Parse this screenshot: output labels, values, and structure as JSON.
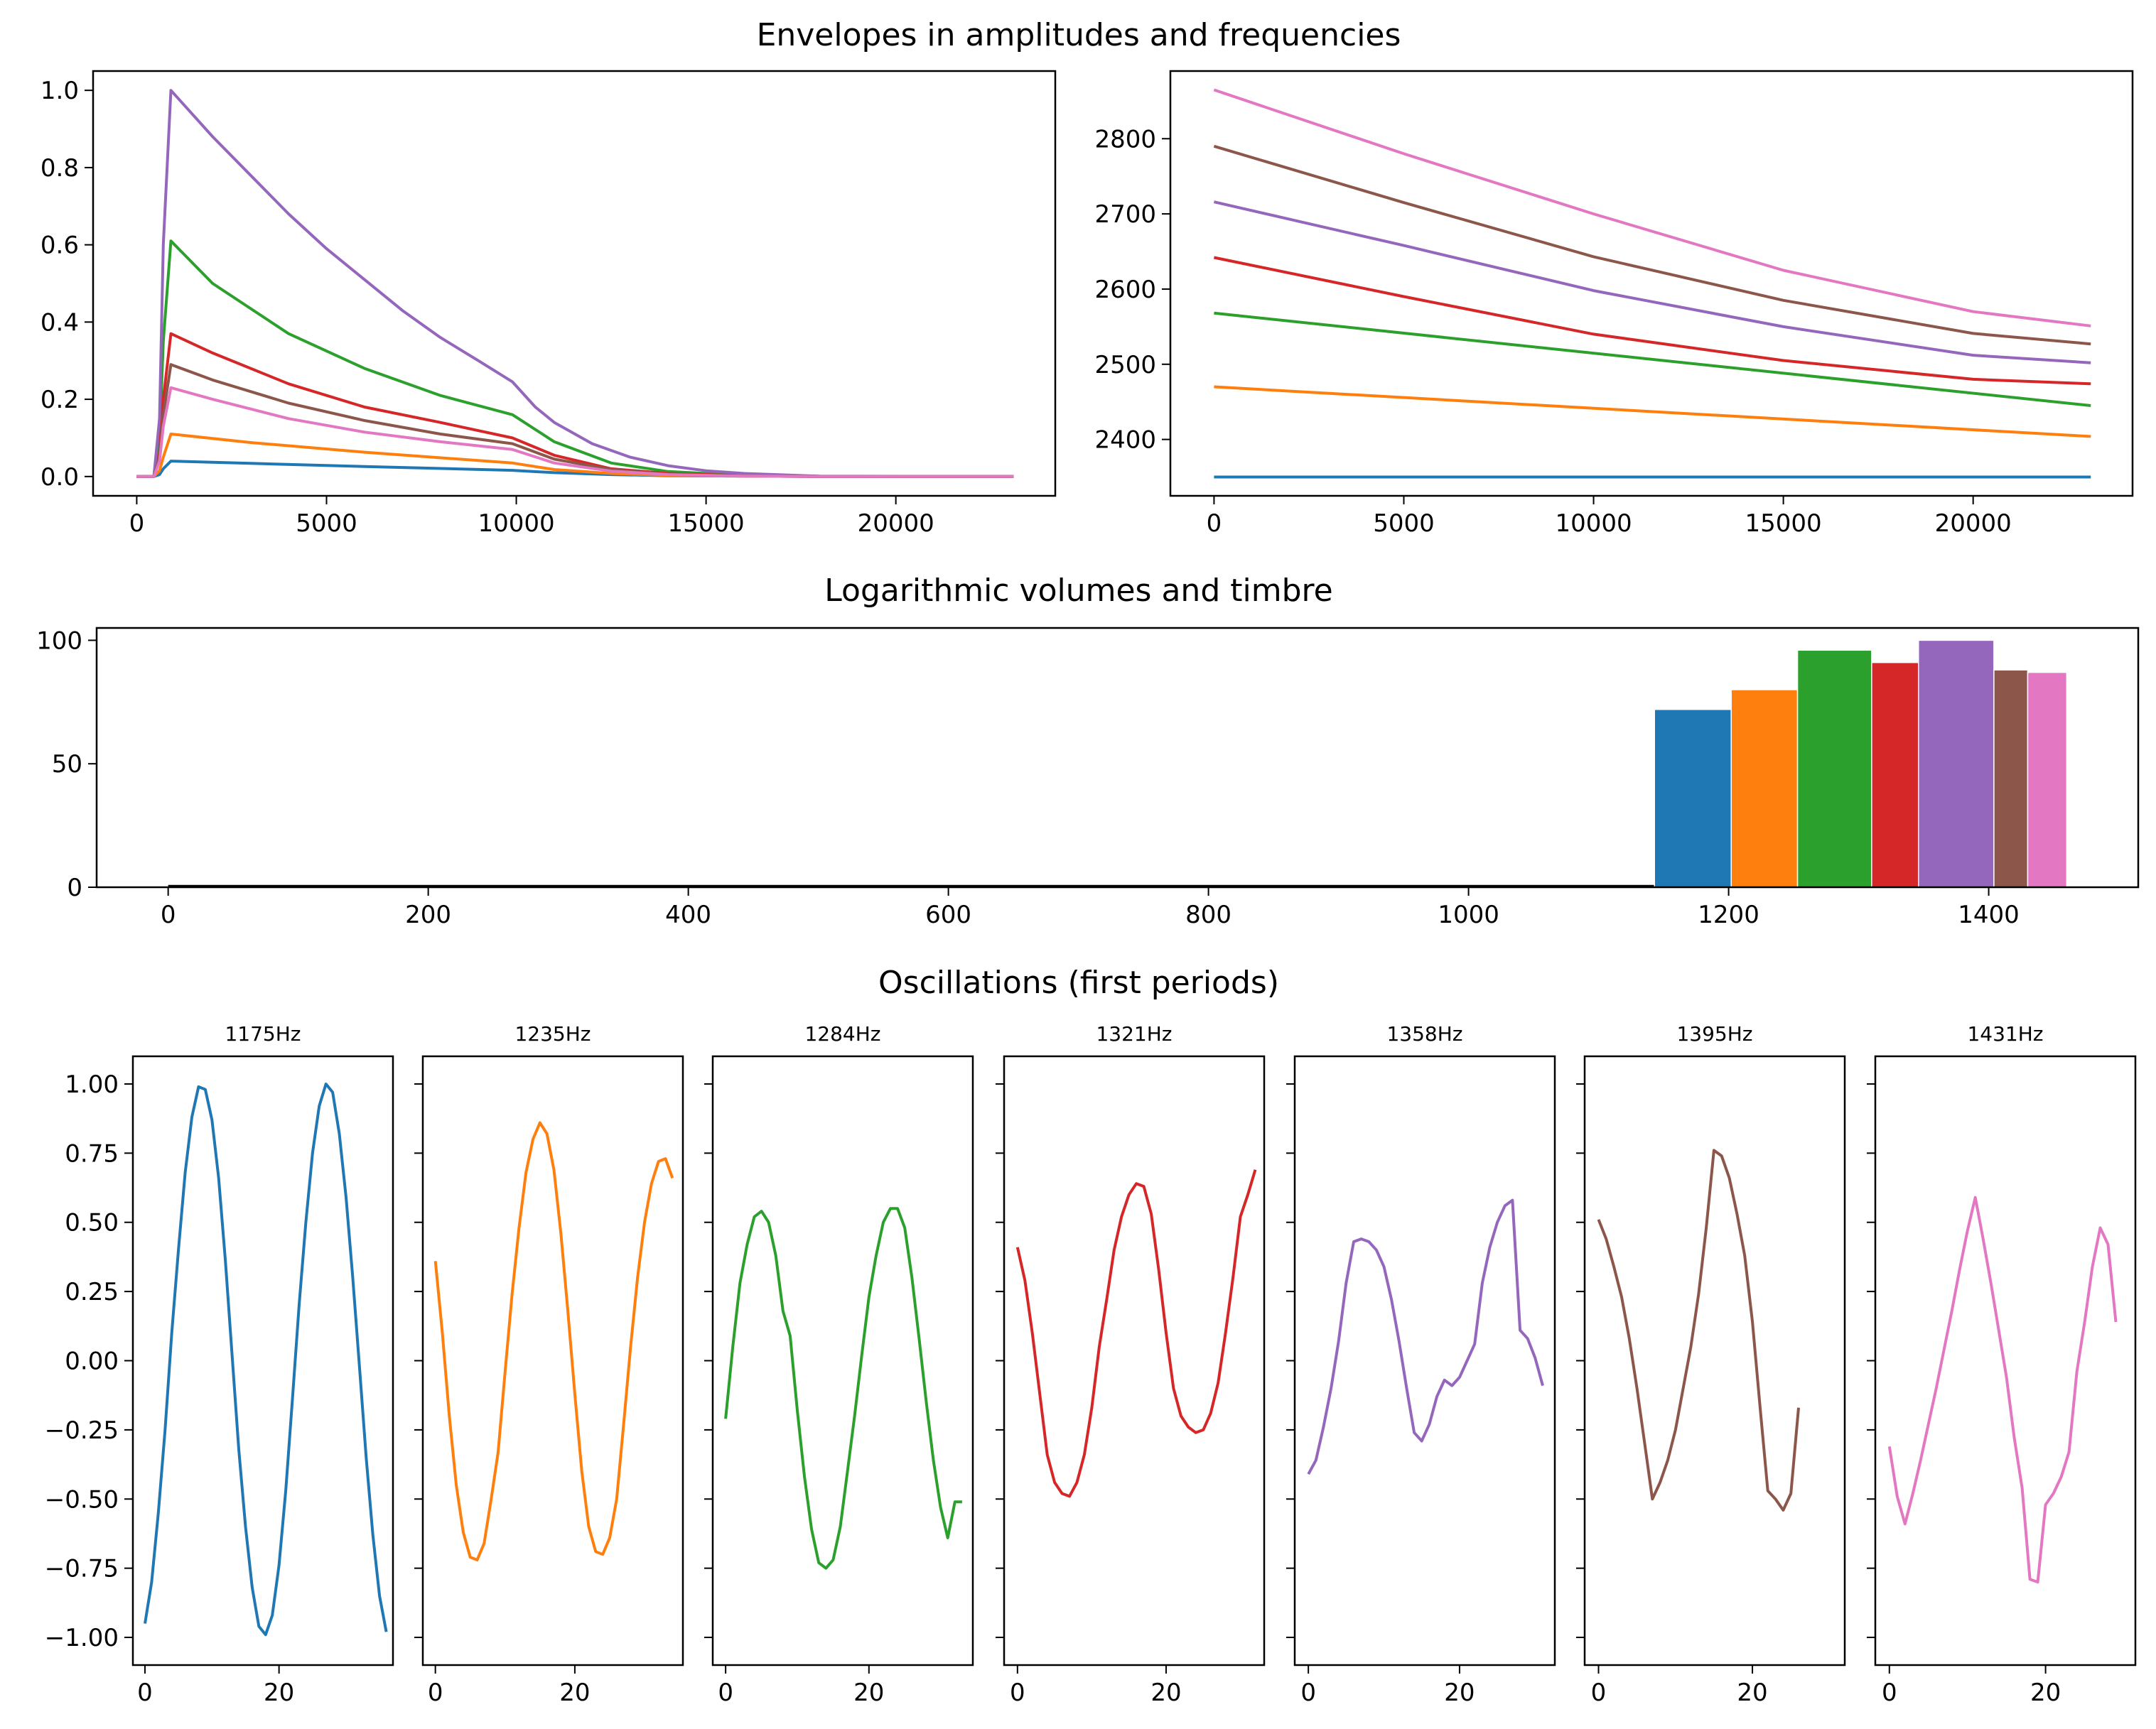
{
  "figure": {
    "titles": {
      "envelopes": "Envelopes in amplitudes and frequencies",
      "volumes": "Logarithmic volumes and timbre",
      "oscillations": "Oscillations (first periods)"
    }
  },
  "colors": [
    "#1f77b4",
    "#ff7f0e",
    "#2ca02c",
    "#d62728",
    "#9467bd",
    "#8c564b",
    "#e377c2"
  ],
  "chart_data": [
    {
      "id": "amplitude-envelopes",
      "type": "line",
      "title": "",
      "xlim": [
        -1150,
        24200
      ],
      "ylim": [
        -0.05,
        1.05
      ],
      "xticks": [
        0,
        5000,
        10000,
        15000,
        20000
      ],
      "yticks": [
        0.0,
        0.2,
        0.4,
        0.6,
        0.8,
        1.0
      ],
      "xticklabels": [
        "0",
        "5000",
        "10000",
        "15000",
        "20000"
      ],
      "yticklabels": [
        "0.0",
        "0.2",
        "0.4",
        "0.6",
        "0.8",
        "1.0"
      ],
      "series": [
        {
          "x": [
            0,
            450,
            600,
            700,
            900,
            3000,
            6000,
            9900,
            11000,
            12500,
            14000,
            16000,
            18000,
            23100
          ],
          "y": [
            0,
            0,
            0.005,
            0.02,
            0.04,
            0.034,
            0.026,
            0.016,
            0.01,
            0.005,
            0.002,
            0.001,
            0,
            0
          ]
        },
        {
          "x": [
            0,
            450,
            600,
            700,
            900,
            3000,
            6000,
            9900,
            11000,
            12500,
            14000,
            16000,
            18000,
            23100
          ],
          "y": [
            0,
            0,
            0.015,
            0.05,
            0.11,
            0.088,
            0.063,
            0.035,
            0.018,
            0.008,
            0.003,
            0.001,
            0,
            0
          ]
        },
        {
          "x": [
            0,
            450,
            600,
            700,
            900,
            2000,
            4000,
            6000,
            8000,
            9900,
            11000,
            12500,
            14000,
            16000,
            18000,
            23100
          ],
          "y": [
            0,
            0,
            0.1,
            0.35,
            0.61,
            0.5,
            0.37,
            0.28,
            0.21,
            0.16,
            0.09,
            0.035,
            0.013,
            0.003,
            0,
            0
          ]
        },
        {
          "x": [
            0,
            450,
            600,
            700,
            900,
            2000,
            4000,
            6000,
            8000,
            9900,
            11000,
            12500,
            14000,
            16000,
            18000,
            23100
          ],
          "y": [
            0,
            0,
            0.06,
            0.2,
            0.37,
            0.32,
            0.24,
            0.18,
            0.14,
            0.1,
            0.055,
            0.02,
            0.008,
            0.002,
            0,
            0
          ]
        },
        {
          "x": [
            0,
            450,
            600,
            700,
            900,
            2000,
            3000,
            4000,
            5000,
            6000,
            7000,
            8000,
            9000,
            9900,
            10500,
            11000,
            12000,
            13000,
            14000,
            15000,
            16000,
            18000,
            23100
          ],
          "y": [
            0,
            0,
            0.15,
            0.6,
            1.0,
            0.88,
            0.78,
            0.68,
            0.59,
            0.51,
            0.43,
            0.36,
            0.3,
            0.245,
            0.18,
            0.14,
            0.085,
            0.05,
            0.028,
            0.015,
            0.008,
            0.001,
            0
          ]
        },
        {
          "x": [
            0,
            450,
            600,
            700,
            900,
            2000,
            4000,
            6000,
            8000,
            9900,
            11000,
            12500,
            14000,
            16000,
            18000,
            23100
          ],
          "y": [
            0,
            0,
            0.05,
            0.16,
            0.29,
            0.25,
            0.19,
            0.145,
            0.11,
            0.085,
            0.045,
            0.018,
            0.006,
            0.001,
            0,
            0
          ]
        },
        {
          "x": [
            0,
            450,
            600,
            700,
            900,
            2000,
            4000,
            6000,
            8000,
            9900,
            11000,
            12500,
            14000,
            16000,
            18000,
            23100
          ],
          "y": [
            0,
            0,
            0.04,
            0.13,
            0.23,
            0.2,
            0.15,
            0.115,
            0.09,
            0.07,
            0.035,
            0.014,
            0.005,
            0.001,
            0,
            0
          ]
        }
      ]
    },
    {
      "id": "frequency-envelopes",
      "type": "line",
      "title": "",
      "xlim": [
        -1150,
        24200
      ],
      "ylim": [
        2325,
        2890
      ],
      "xticks": [
        0,
        5000,
        10000,
        15000,
        20000
      ],
      "yticks": [
        2400,
        2500,
        2600,
        2700,
        2800
      ],
      "xticklabels": [
        "0",
        "5000",
        "10000",
        "15000",
        "20000"
      ],
      "yticklabels": [
        "2400",
        "2500",
        "2600",
        "2700",
        "2800"
      ],
      "series": [
        {
          "x": [
            0,
            23100
          ],
          "y": [
            2350,
            2350
          ]
        },
        {
          "x": [
            0,
            23100
          ],
          "y": [
            2470,
            2404
          ]
        },
        {
          "x": [
            0,
            23100
          ],
          "y": [
            2568,
            2445
          ]
        },
        {
          "x": [
            0,
            5000,
            10000,
            15000,
            20000,
            23100
          ],
          "y": [
            2642,
            2590,
            2540,
            2505,
            2480,
            2474
          ]
        },
        {
          "x": [
            0,
            5000,
            10000,
            15000,
            20000,
            23100
          ],
          "y": [
            2716,
            2658,
            2598,
            2550,
            2512,
            2502
          ]
        },
        {
          "x": [
            0,
            5000,
            10000,
            15000,
            20000,
            23100
          ],
          "y": [
            2790,
            2715,
            2643,
            2585,
            2541,
            2527
          ]
        },
        {
          "x": [
            0,
            5000,
            10000,
            15000,
            20000,
            23100
          ],
          "y": [
            2865,
            2780,
            2700,
            2625,
            2570,
            2551
          ]
        }
      ]
    },
    {
      "id": "log-volumes",
      "type": "bar",
      "title": "",
      "xlim": [
        -55,
        1515
      ],
      "ylim": [
        0,
        105
      ],
      "xticks": [
        0,
        200,
        400,
        600,
        800,
        1000,
        1200,
        1400
      ],
      "yticks": [
        0,
        50,
        100
      ],
      "xticklabels": [
        "0",
        "200",
        "400",
        "600",
        "800",
        "1000",
        "1200",
        "1400"
      ],
      "yticklabels": [
        "0",
        "50",
        "100"
      ],
      "baseline_x": [
        0,
        1430
      ],
      "baseline_y": 0.5,
      "bars": [
        {
          "x0": 1143,
          "x1": 1202,
          "value": 72
        },
        {
          "x0": 1202,
          "x1": 1253,
          "value": 80
        },
        {
          "x0": 1253,
          "x1": 1310,
          "value": 96
        },
        {
          "x0": 1310,
          "x1": 1346,
          "value": 91
        },
        {
          "x0": 1346,
          "x1": 1404,
          "value": 100
        },
        {
          "x0": 1404,
          "x1": 1430,
          "value": 88
        },
        {
          "x0": 1430,
          "x1": 1460,
          "value": 87
        }
      ]
    },
    {
      "id": "oscillations",
      "type": "line",
      "title": "",
      "ylim": [
        -1.1,
        1.1
      ],
      "yticks": [
        -1.0,
        -0.75,
        -0.5,
        -0.25,
        0.0,
        0.25,
        0.5,
        0.75,
        1.0
      ],
      "yticklabels": [
        "−1.00",
        "−0.75",
        "−0.50",
        "−0.25",
        "0.00",
        "0.25",
        "0.50",
        "0.75",
        "1.00"
      ],
      "xticks": [
        0,
        20
      ],
      "xticklabels": [
        "0",
        "20"
      ],
      "panels": [
        {
          "label": "1175Hz",
          "xlim": [
            -1.8,
            37
          ],
          "y": [
            -0.95,
            -0.8,
            -0.55,
            -0.25,
            0.1,
            0.4,
            0.68,
            0.88,
            0.99,
            0.98,
            0.87,
            0.66,
            0.36,
            0.02,
            -0.32,
            -0.6,
            -0.82,
            -0.96,
            -0.99,
            -0.92,
            -0.74,
            -0.47,
            -0.14,
            0.2,
            0.5,
            0.75,
            0.92,
            1.0,
            0.97,
            0.82,
            0.59,
            0.3,
            -0.02,
            -0.35,
            -0.63,
            -0.85,
            -0.98
          ]
        },
        {
          "label": "1235Hz",
          "xlim": [
            -1.8,
            35.5
          ],
          "y": [
            0.36,
            0.1,
            -0.2,
            -0.45,
            -0.62,
            -0.71,
            -0.72,
            -0.66,
            -0.5,
            -0.33,
            -0.04,
            0.24,
            0.48,
            0.68,
            0.8,
            0.86,
            0.82,
            0.69,
            0.46,
            0.18,
            -0.12,
            -0.4,
            -0.6,
            -0.69,
            -0.7,
            -0.64,
            -0.5,
            -0.23,
            0.05,
            0.3,
            0.5,
            0.64,
            0.72,
            0.73,
            0.66
          ]
        },
        {
          "label": "1284Hz",
          "xlim": [
            -1.8,
            34.5
          ],
          "y": [
            -0.21,
            0.05,
            0.28,
            0.42,
            0.52,
            0.54,
            0.5,
            0.38,
            0.18,
            0.09,
            -0.18,
            -0.42,
            -0.61,
            -0.73,
            -0.75,
            -0.72,
            -0.6,
            -0.4,
            -0.2,
            0.02,
            0.23,
            0.38,
            0.5,
            0.55,
            0.55,
            0.48,
            0.3,
            0.08,
            -0.15,
            -0.36,
            -0.53,
            -0.64,
            -0.51,
            -0.51
          ]
        },
        {
          "label": "1321Hz",
          "xlim": [
            -1.8,
            33.2
          ],
          "y": [
            0.41,
            0.29,
            0.1,
            -0.12,
            -0.34,
            -0.44,
            -0.48,
            -0.49,
            -0.44,
            -0.34,
            -0.17,
            0.05,
            0.22,
            0.4,
            0.52,
            0.6,
            0.64,
            0.63,
            0.53,
            0.33,
            0.1,
            -0.1,
            -0.2,
            -0.24,
            -0.26,
            -0.25,
            -0.19,
            -0.08,
            0.1,
            0.3,
            0.52,
            0.6,
            0.69
          ]
        },
        {
          "label": "1358Hz",
          "xlim": [
            -1.8,
            32.6
          ],
          "y": [
            -0.41,
            -0.36,
            -0.24,
            -0.1,
            0.07,
            0.28,
            0.43,
            0.44,
            0.43,
            0.4,
            0.34,
            0.22,
            0.07,
            -0.1,
            -0.26,
            -0.29,
            -0.23,
            -0.13,
            -0.07,
            -0.09,
            -0.06,
            0.0,
            0.06,
            0.28,
            0.41,
            0.5,
            0.56,
            0.58,
            0.11,
            0.08,
            0.01,
            -0.09
          ]
        },
        {
          "label": "1395Hz",
          "xlim": [
            -1.8,
            32
          ],
          "y": [
            0.51,
            0.44,
            0.34,
            0.23,
            0.08,
            -0.1,
            -0.3,
            -0.5,
            -0.44,
            -0.36,
            -0.25,
            -0.1,
            0.05,
            0.24,
            0.48,
            0.76,
            0.74,
            0.66,
            0.53,
            0.38,
            0.14,
            -0.17,
            -0.47,
            -0.5,
            -0.54,
            -0.48,
            -0.17
          ]
        },
        {
          "label": "1431Hz",
          "xlim": [
            -1.8,
            31.5
          ],
          "y": [
            -0.31,
            -0.49,
            -0.59,
            -0.48,
            -0.36,
            -0.23,
            -0.1,
            0.04,
            0.18,
            0.33,
            0.47,
            0.59,
            0.44,
            0.28,
            0.11,
            -0.06,
            -0.28,
            -0.46,
            -0.79,
            -0.8,
            -0.52,
            -0.48,
            -0.42,
            -0.33,
            -0.04,
            0.14,
            0.34,
            0.48,
            0.42,
            0.14
          ]
        }
      ]
    }
  ]
}
